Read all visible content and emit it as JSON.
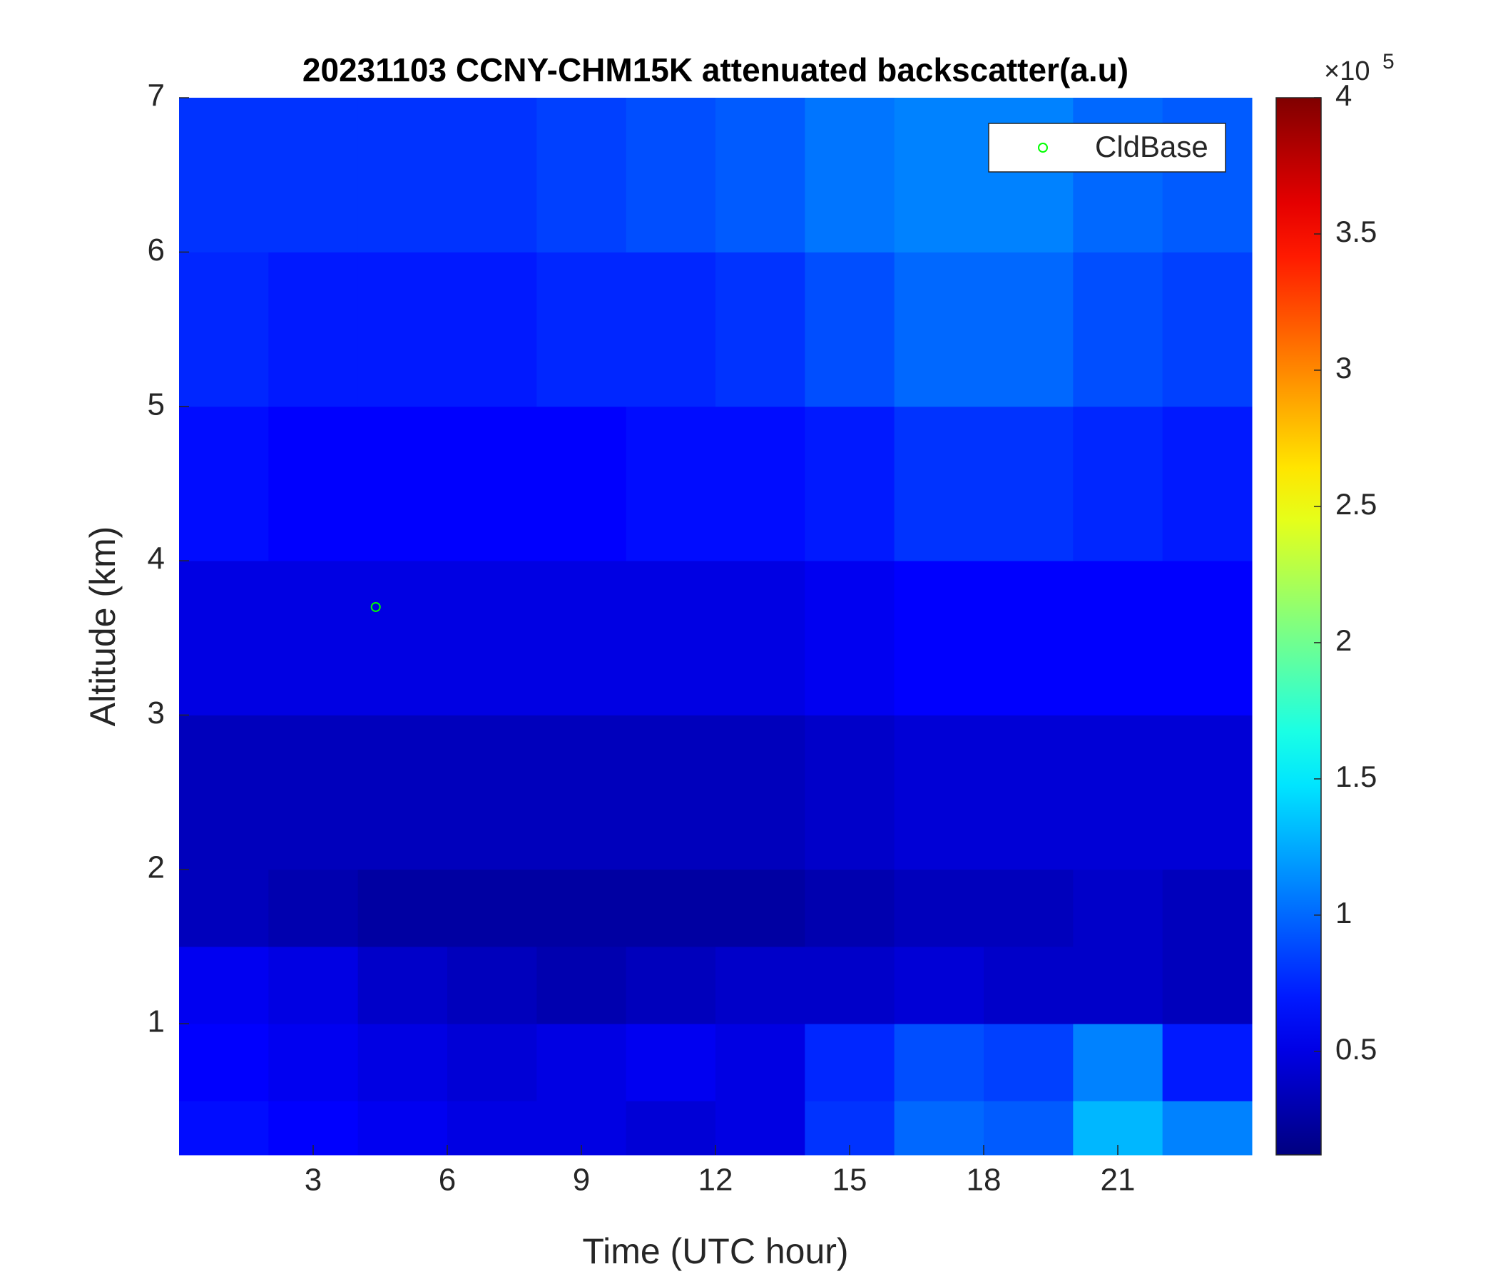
{
  "chart_data": {
    "type": "heatmap",
    "title": "20231103 CCNY-CHM15K attenuated backscatter(a.u)",
    "x_label": "Time (UTC hour)",
    "y_label": "Altitude (km)",
    "xlim": [
      0,
      24
    ],
    "xticks": [
      3,
      6,
      9,
      12,
      15,
      18,
      21
    ],
    "ylim": [
      0.15,
      7
    ],
    "yticks": [
      1,
      2,
      3,
      4,
      5,
      6,
      7
    ],
    "x_edges": [
      0,
      2,
      4,
      6,
      8,
      10,
      12,
      14,
      16,
      18,
      20,
      22,
      24
    ],
    "y_edges": [
      0.15,
      0.5,
      1,
      1.5,
      2,
      3,
      4,
      5,
      6,
      7
    ],
    "z": [
      [
        0.65,
        0.6,
        0.55,
        0.5,
        0.5,
        0.45,
        0.5,
        0.8,
        1.0,
        0.95,
        1.3,
        1.1
      ],
      [
        0.6,
        0.55,
        0.5,
        0.45,
        0.5,
        0.55,
        0.5,
        0.75,
        0.9,
        0.85,
        1.1,
        0.7
      ],
      [
        0.55,
        0.5,
        0.4,
        0.35,
        0.3,
        0.35,
        0.4,
        0.4,
        0.45,
        0.4,
        0.4,
        0.35
      ],
      [
        0.35,
        0.3,
        0.25,
        0.25,
        0.25,
        0.25,
        0.25,
        0.3,
        0.35,
        0.35,
        0.4,
        0.35
      ],
      [
        0.35,
        0.35,
        0.35,
        0.35,
        0.35,
        0.35,
        0.35,
        0.4,
        0.45,
        0.45,
        0.45,
        0.45
      ],
      [
        0.5,
        0.5,
        0.5,
        0.5,
        0.5,
        0.5,
        0.5,
        0.55,
        0.6,
        0.6,
        0.6,
        0.6
      ],
      [
        0.65,
        0.6,
        0.6,
        0.6,
        0.6,
        0.65,
        0.65,
        0.7,
        0.8,
        0.8,
        0.75,
        0.7
      ],
      [
        0.75,
        0.7,
        0.7,
        0.7,
        0.75,
        0.75,
        0.8,
        0.9,
        1.0,
        1.0,
        0.9,
        0.85
      ],
      [
        0.8,
        0.8,
        0.8,
        0.8,
        0.85,
        0.9,
        0.95,
        1.05,
        1.1,
        1.1,
        1.0,
        0.95
      ]
    ],
    "colormap": "jet",
    "clim": [
      0.12,
      4
    ],
    "colorbar_ticks": [
      0.5,
      1,
      1.5,
      2,
      2.5,
      3,
      3.5,
      4
    ],
    "colorbar_scale": {
      "base_label": "×10",
      "exponent": 5
    },
    "series": [
      {
        "name": "CldBase",
        "color": "#00ff00",
        "x": [
          4.4
        ],
        "y": [
          3.7
        ]
      }
    ],
    "legend": "upper right"
  }
}
